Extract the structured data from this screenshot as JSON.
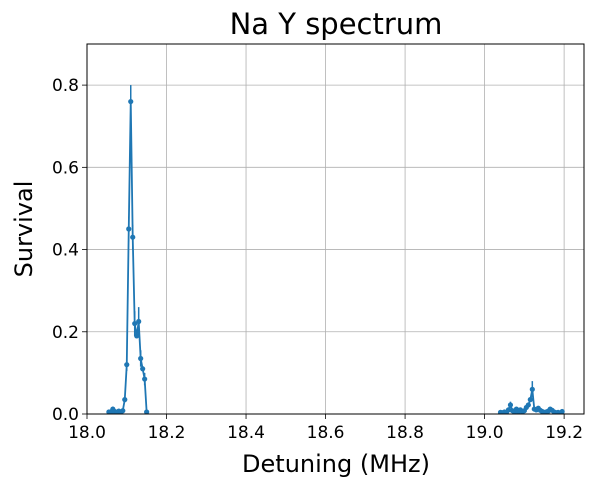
{
  "chart_data": {
    "type": "line",
    "title": "Na Y spectrum",
    "xlabel": "Detuning (MHz)",
    "ylabel": "Survival",
    "xlim": [
      18.0,
      19.25
    ],
    "ylim": [
      0,
      0.9
    ],
    "xticks": [
      18.0,
      18.2,
      18.4,
      18.6,
      18.8,
      19.0,
      19.2
    ],
    "xtick_labels": [
      "18.0",
      "18.2",
      "18.4",
      "18.6",
      "18.8",
      "19.0",
      "19.2"
    ],
    "yticks": [
      0.0,
      0.2,
      0.4,
      0.6,
      0.8
    ],
    "ytick_labels": [
      "0.0",
      "0.2",
      "0.4",
      "0.6",
      "0.8"
    ],
    "grid": true,
    "color": "#1f77b4",
    "series": [
      {
        "segments": [
          [
            [
              18.055,
              0.005
            ],
            [
              18.06,
              0.005
            ],
            [
              18.065,
              0.012
            ],
            [
              18.07,
              0.006
            ],
            [
              18.075,
              0.004
            ],
            [
              18.08,
              0.007
            ],
            [
              18.085,
              0.003
            ],
            [
              18.09,
              0.008
            ],
            [
              18.095,
              0.035
            ],
            [
              18.1,
              0.12
            ],
            [
              18.105,
              0.45
            ],
            [
              18.11,
              0.76
            ],
            [
              18.115,
              0.43
            ],
            [
              18.12,
              0.22
            ],
            [
              18.125,
              0.19
            ],
            [
              18.13,
              0.225
            ],
            [
              18.135,
              0.135
            ],
            [
              18.14,
              0.11
            ],
            [
              18.145,
              0.085
            ],
            [
              18.15,
              0.005
            ]
          ],
          [
            [
              19.04,
              0.004
            ],
            [
              19.045,
              0.003
            ],
            [
              19.05,
              0.005
            ],
            [
              19.055,
              0.004
            ],
            [
              19.06,
              0.01
            ],
            [
              19.065,
              0.022
            ],
            [
              19.07,
              0.008
            ],
            [
              19.075,
              0.005
            ],
            [
              19.08,
              0.012
            ],
            [
              19.085,
              0.006
            ],
            [
              19.09,
              0.01
            ],
            [
              19.095,
              0.005
            ],
            [
              19.1,
              0.008
            ],
            [
              19.105,
              0.016
            ],
            [
              19.11,
              0.022
            ],
            [
              19.115,
              0.035
            ],
            [
              19.12,
              0.06
            ],
            [
              19.125,
              0.012
            ],
            [
              19.13,
              0.01
            ],
            [
              19.135,
              0.014
            ],
            [
              19.14,
              0.009
            ],
            [
              19.145,
              0.006
            ],
            [
              19.15,
              0.004
            ],
            [
              19.155,
              0.005
            ],
            [
              19.16,
              0.007
            ],
            [
              19.165,
              0.012
            ],
            [
              19.17,
              0.009
            ],
            [
              19.175,
              0.005
            ],
            [
              19.18,
              0.003
            ],
            [
              19.185,
              0.004
            ],
            [
              19.19,
              0.002
            ],
            [
              19.195,
              0.006
            ]
          ]
        ],
        "errors": [
          [
            18.065,
            0.012,
            0.006
          ],
          [
            18.1,
            0.12,
            0.015
          ],
          [
            18.105,
            0.45,
            0.03
          ],
          [
            18.11,
            0.76,
            0.04
          ],
          [
            18.115,
            0.43,
            0.03
          ],
          [
            18.12,
            0.22,
            0.03
          ],
          [
            18.13,
            0.225,
            0.035
          ],
          [
            18.135,
            0.135,
            0.02
          ],
          [
            18.145,
            0.085,
            0.015
          ],
          [
            19.065,
            0.022,
            0.008
          ],
          [
            19.12,
            0.06,
            0.02
          ]
        ]
      }
    ]
  }
}
